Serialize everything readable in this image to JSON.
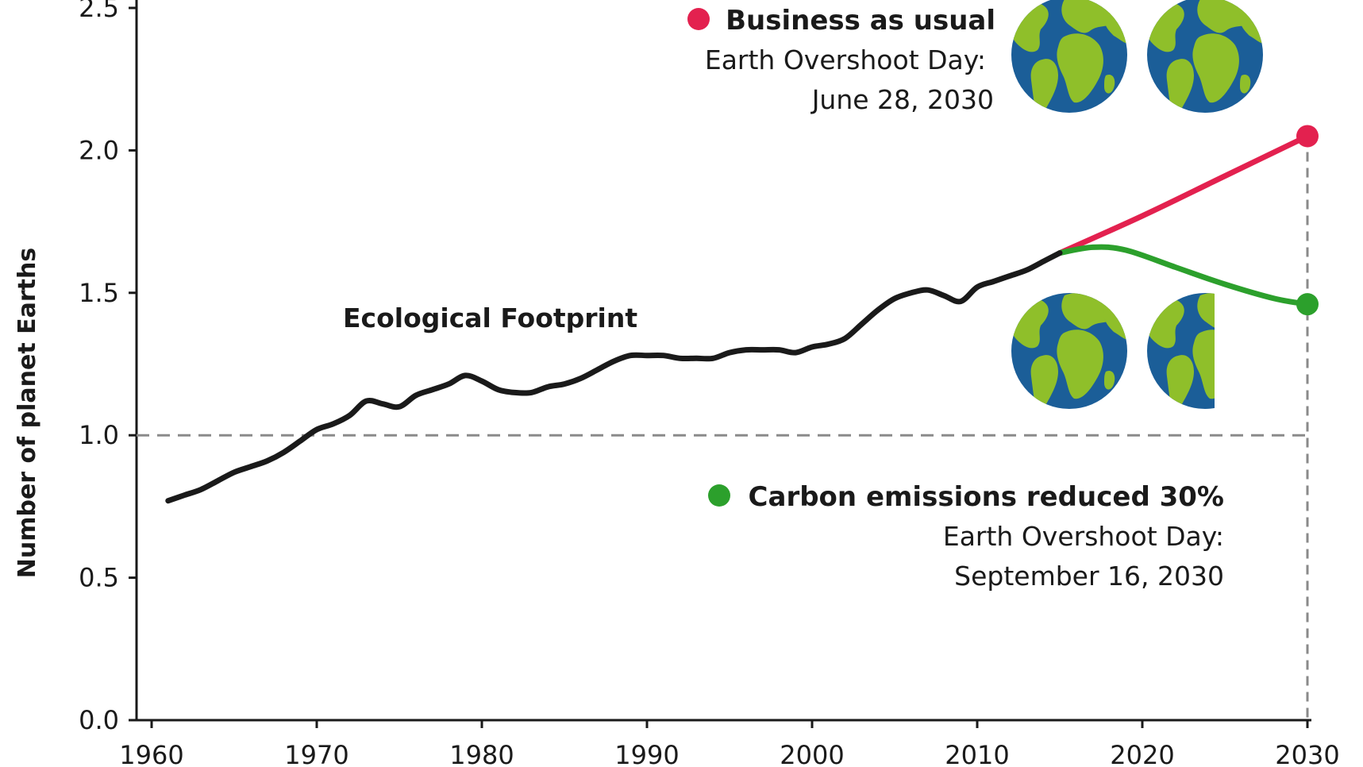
{
  "chart_data": {
    "type": "line",
    "title": "",
    "xlabel": "",
    "ylabel": "Number of planet Earths",
    "xlim": [
      1960,
      2030
    ],
    "ylim": [
      0,
      2.5
    ],
    "x_ticks": [
      "1960",
      "1970",
      "1980",
      "1990",
      "2000",
      "2010",
      "2020",
      "2030"
    ],
    "y_ticks": [
      "0.0",
      "0.5",
      "1.0",
      "1.5",
      "2.0",
      "2.5"
    ],
    "reference_line": {
      "y": 1.0,
      "style": "dashed"
    },
    "grid": false,
    "series": [
      {
        "name": "Ecological Footprint",
        "color": "#1a1a1a",
        "points": [
          [
            1961,
            0.77
          ],
          [
            1962,
            0.79
          ],
          [
            1963,
            0.81
          ],
          [
            1964,
            0.84
          ],
          [
            1965,
            0.87
          ],
          [
            1966,
            0.89
          ],
          [
            1967,
            0.91
          ],
          [
            1968,
            0.94
          ],
          [
            1969,
            0.98
          ],
          [
            1970,
            1.02
          ],
          [
            1971,
            1.04
          ],
          [
            1972,
            1.07
          ],
          [
            1973,
            1.12
          ],
          [
            1974,
            1.11
          ],
          [
            1975,
            1.1
          ],
          [
            1976,
            1.14
          ],
          [
            1977,
            1.16
          ],
          [
            1978,
            1.18
          ],
          [
            1979,
            1.21
          ],
          [
            1980,
            1.19
          ],
          [
            1981,
            1.16
          ],
          [
            1982,
            1.15
          ],
          [
            1983,
            1.15
          ],
          [
            1984,
            1.17
          ],
          [
            1985,
            1.18
          ],
          [
            1986,
            1.2
          ],
          [
            1987,
            1.23
          ],
          [
            1988,
            1.26
          ],
          [
            1989,
            1.28
          ],
          [
            1990,
            1.28
          ],
          [
            1991,
            1.28
          ],
          [
            1992,
            1.27
          ],
          [
            1993,
            1.27
          ],
          [
            1994,
            1.27
          ],
          [
            1995,
            1.29
          ],
          [
            1996,
            1.3
          ],
          [
            1997,
            1.3
          ],
          [
            1998,
            1.3
          ],
          [
            1999,
            1.29
          ],
          [
            2000,
            1.31
          ],
          [
            2001,
            1.32
          ],
          [
            2002,
            1.34
          ],
          [
            2003,
            1.39
          ],
          [
            2004,
            1.44
          ],
          [
            2005,
            1.48
          ],
          [
            2006,
            1.5
          ],
          [
            2007,
            1.51
          ],
          [
            2008,
            1.49
          ],
          [
            2009,
            1.47
          ],
          [
            2010,
            1.52
          ],
          [
            2011,
            1.54
          ],
          [
            2012,
            1.56
          ],
          [
            2013,
            1.58
          ],
          [
            2014,
            1.61
          ],
          [
            2015,
            1.64
          ]
        ]
      },
      {
        "name": "Business as usual",
        "color": "#e3214f",
        "points": [
          [
            2015,
            1.64
          ],
          [
            2020,
            1.77
          ],
          [
            2025,
            1.91
          ],
          [
            2030,
            2.05
          ]
        ],
        "endpoint": [
          2030,
          2.05
        ]
      },
      {
        "name": "Carbon emissions reduced 30%",
        "color": "#2ca02c",
        "points": [
          [
            2015,
            1.64
          ],
          [
            2017,
            1.66
          ],
          [
            2019,
            1.65
          ],
          [
            2022,
            1.59
          ],
          [
            2025,
            1.53
          ],
          [
            2028,
            1.48
          ],
          [
            2030,
            1.46
          ]
        ],
        "endpoint": [
          2030,
          1.46
        ]
      }
    ],
    "annotations": {
      "footprint_label": "Ecological Footprint",
      "bau": {
        "title": "Business as usual",
        "line1": "Earth Overshoot Day:",
        "line2": "June 28, 2030"
      },
      "reduced": {
        "title": "Carbon emissions reduced 30%",
        "line1": "Earth Overshoot Day:",
        "line2": "September 16, 2030"
      }
    },
    "earths": {
      "business_as_usual": 2,
      "reduced_30": 1.5
    }
  },
  "colors": {
    "ocean": "#1b5e98",
    "land": "#8fbf2a",
    "axis": "#1a1a1a",
    "dash": "#8a8a8a"
  }
}
